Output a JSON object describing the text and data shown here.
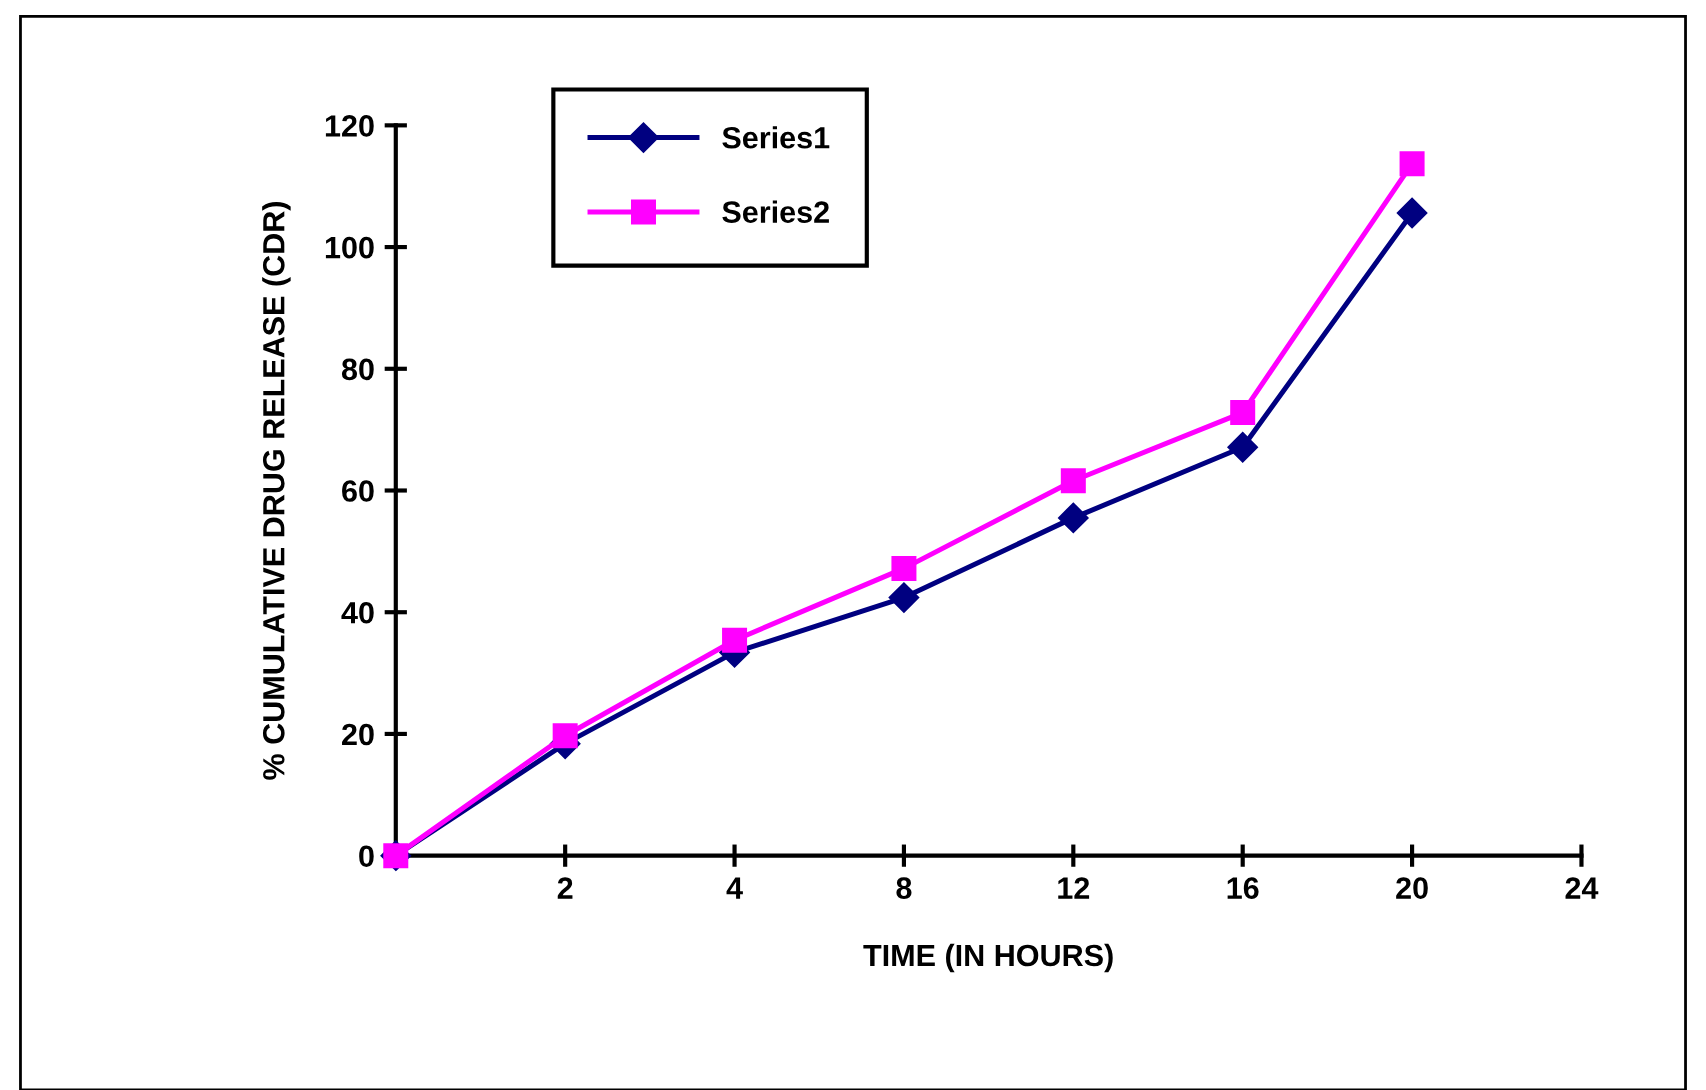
{
  "chart_data": {
    "type": "line",
    "xlabel": "TIME (IN HOURS)",
    "ylabel": "% CUMULATIVE DRUG RELEASE (CDR)",
    "categories": [
      null,
      "2",
      "4",
      "8",
      "12",
      "16",
      "20",
      "24"
    ],
    "series": [
      {
        "name": "Series1",
        "color": "#000080",
        "marker": "diamond",
        "values": [
          0,
          18.4,
          33.4,
          42.4,
          55.5,
          67.1,
          105.6,
          null
        ]
      },
      {
        "name": "Series2",
        "color": "#ff00ff",
        "marker": "square",
        "values": [
          0,
          19.7,
          35.4,
          47.2,
          61.6,
          72.8,
          113.7,
          null
        ]
      }
    ],
    "ylim": [
      0,
      120
    ],
    "yticks": [
      0,
      20,
      40,
      60,
      80,
      100,
      120
    ],
    "grid": false,
    "legend": "top left",
    "line_style": "solid"
  }
}
